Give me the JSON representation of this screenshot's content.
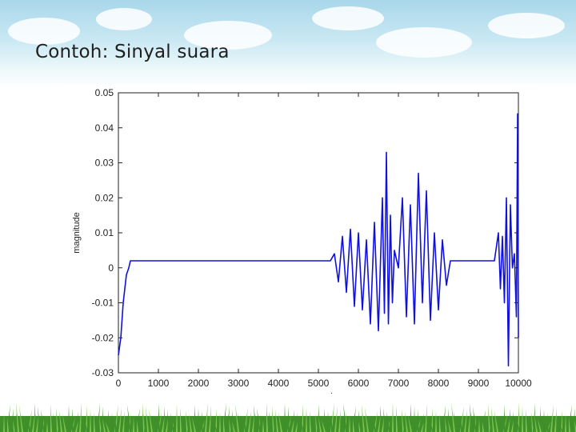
{
  "slide": {
    "title": "Contoh:  Sinyal suara"
  },
  "colors": {
    "signal": "#1010e0",
    "axis": "#222222",
    "sky_top": "#a9d7ea",
    "grass_dark": "#3f8f2a",
    "grass_light": "#7cc44e"
  },
  "chart_data": {
    "type": "line",
    "title": "",
    "xlabel": "sampel",
    "ylabel": "magnitude",
    "xlim": [
      0,
      10000
    ],
    "ylim": [
      -0.03,
      0.05
    ],
    "x_ticks": [
      "0",
      "1000",
      "2000",
      "3000",
      "4000",
      "5000",
      "6000",
      "7000",
      "8000",
      "9000",
      "10000"
    ],
    "y_ticks": [
      "0.05",
      "0.04",
      "0.03",
      "0.02",
      "0.01",
      "0",
      "-0.01",
      "-0.02",
      "-0.03"
    ],
    "grid": false,
    "series": [
      {
        "x": [
          0,
          60,
          120,
          200,
          260,
          300,
          400,
          1000,
          2000,
          3000,
          4000,
          5000,
          5300,
          5400,
          5500,
          5600,
          5700,
          5800,
          5900,
          6000,
          6100,
          6200,
          6300,
          6400,
          6500,
          6600,
          6650,
          6700,
          6750,
          6800,
          6850,
          6900,
          7000,
          7100,
          7200,
          7300,
          7400,
          7500,
          7600,
          7700,
          7800,
          7900,
          8000,
          8100,
          8200,
          8300,
          8500,
          9000,
          9400,
          9500,
          9550,
          9600,
          9650,
          9700,
          9750,
          9800,
          9850,
          9900,
          9950,
          9980,
          10000
        ],
        "y": [
          -0.025,
          -0.02,
          -0.01,
          -0.002,
          0.0,
          0.002,
          0.002,
          0.002,
          0.002,
          0.002,
          0.002,
          0.002,
          0.002,
          0.004,
          -0.004,
          0.009,
          -0.007,
          0.011,
          -0.011,
          0.01,
          -0.012,
          0.008,
          -0.016,
          0.013,
          -0.018,
          0.02,
          -0.013,
          0.033,
          -0.016,
          0.015,
          -0.01,
          0.005,
          0.0,
          0.02,
          -0.014,
          0.018,
          -0.016,
          0.027,
          -0.01,
          0.022,
          -0.015,
          0.01,
          -0.012,
          0.008,
          -0.005,
          0.002,
          0.002,
          0.002,
          0.002,
          0.01,
          -0.006,
          0.009,
          -0.01,
          0.02,
          -0.028,
          0.018,
          0.0,
          0.004,
          -0.014,
          0.044,
          -0.02
        ]
      }
    ]
  }
}
